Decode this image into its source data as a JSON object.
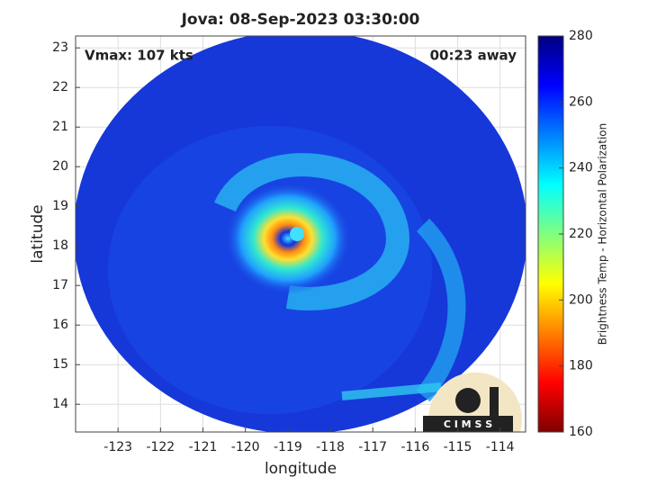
{
  "chart_data": {
    "type": "image-map",
    "title": "Jova: 08-Sep-2023 03:30:00",
    "annotations": [
      "Vmax: 107 kts",
      "00:23 away"
    ],
    "xlabel": "longitude",
    "ylabel": "latitude",
    "xlim": [
      -124,
      -113.4
    ],
    "ylim": [
      13.3,
      23.3
    ],
    "xticks": [
      -123,
      -122,
      -121,
      -120,
      -119,
      -118,
      -117,
      -116,
      -115,
      -114
    ],
    "yticks": [
      14,
      15,
      16,
      17,
      18,
      19,
      20,
      21,
      22,
      23
    ],
    "grid": true,
    "colorbar": {
      "label": "Brightness Temp - Horizontal Polarization",
      "lim": [
        160,
        280
      ],
      "ticks": [
        160,
        180,
        200,
        220,
        240,
        260,
        280
      ],
      "colormap": "jet"
    },
    "logo_text": "C I M S S"
  }
}
